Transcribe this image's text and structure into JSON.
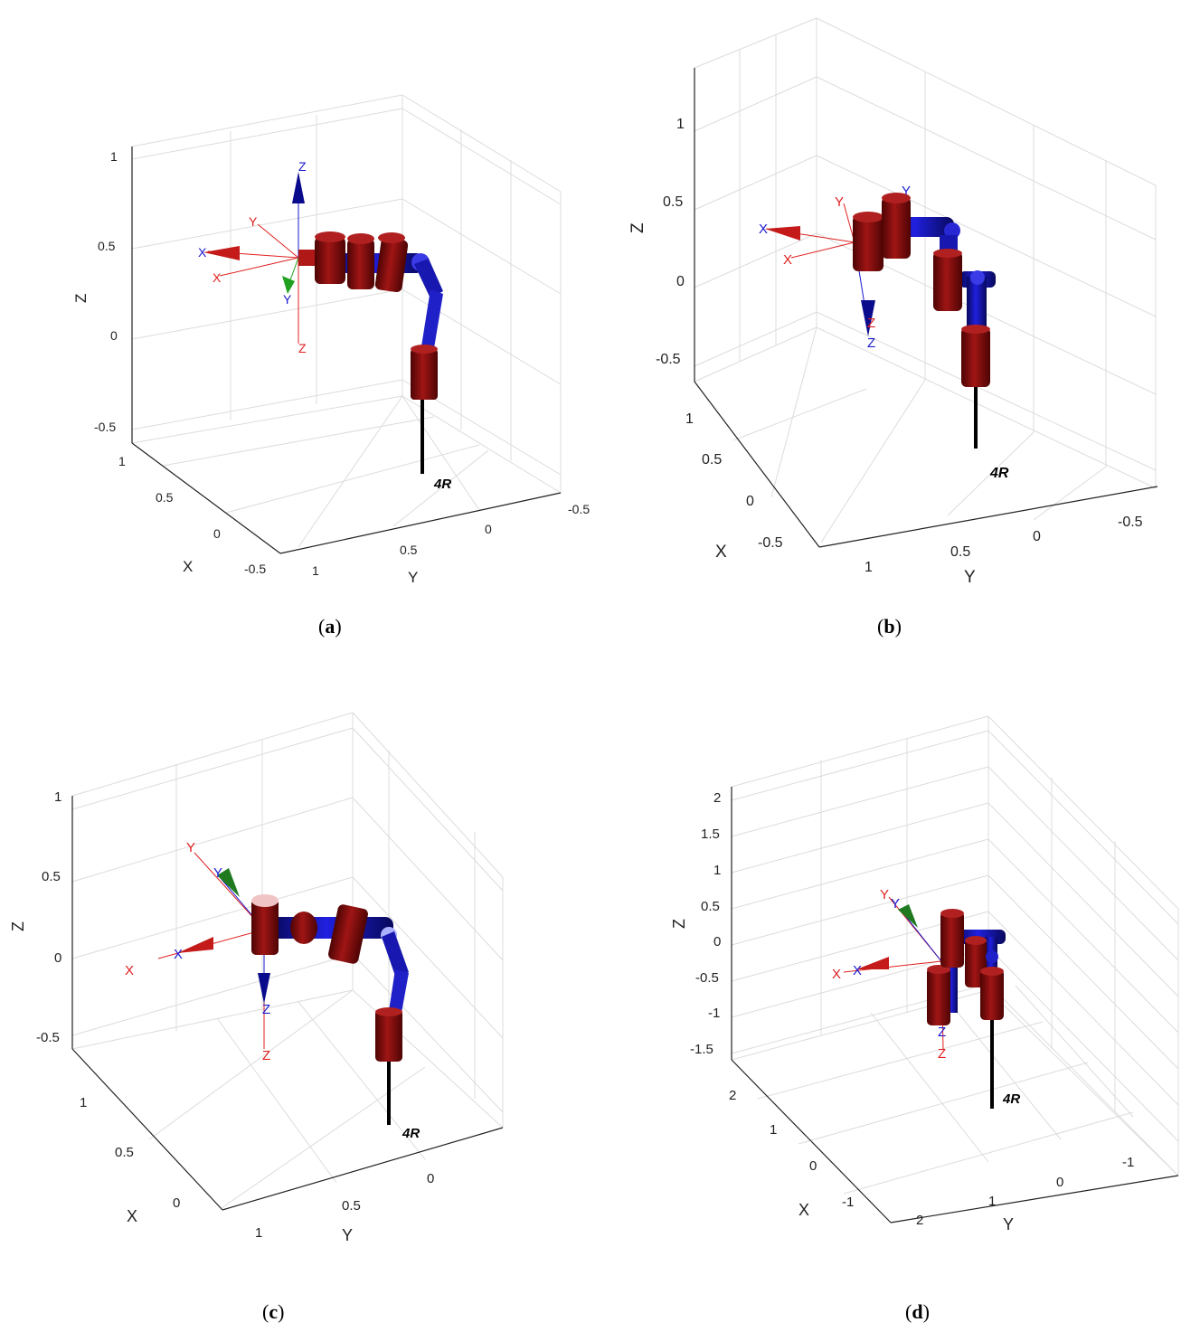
{
  "panels": [
    {
      "caption_open": "(",
      "caption_letter": "a",
      "caption_close": ")",
      "z_ticks": [
        "1",
        "0.5",
        "0",
        "-0.5"
      ],
      "x_ticks": [
        "1",
        "0.5",
        "0",
        "-0.5"
      ],
      "y_ticks": [
        "1",
        "0.5",
        "0",
        "-0.5"
      ],
      "axis_labels": {
        "x": "X",
        "y": "Y",
        "z": "Z"
      },
      "robot_label": "4R",
      "frame_labels": {
        "red_x": "X",
        "red_y": "Y",
        "red_z": "Z",
        "blue_x": "X",
        "blue_z": "Z",
        "green_y": "Y"
      }
    },
    {
      "caption_open": "(",
      "caption_letter": "b",
      "caption_close": ")",
      "z_ticks": [
        "1",
        "0.5",
        "0",
        "-0.5"
      ],
      "x_ticks": [
        "1",
        "0.5",
        "0",
        "-0.5"
      ],
      "y_ticks": [
        "1",
        "0.5",
        "0",
        "-0.5"
      ],
      "axis_labels": {
        "x": "X",
        "y": "Y",
        "z": "Z"
      },
      "robot_label": "4R",
      "frame_labels": {
        "red_x": "X",
        "red_y": "Y",
        "red_z": "Z",
        "blue_x": "X",
        "blue_y": "Y",
        "blue_z": "Z"
      }
    },
    {
      "caption_open": "(",
      "caption_letter": "c",
      "caption_close": ")",
      "z_ticks": [
        "1",
        "0.5",
        "0",
        "-0.5"
      ],
      "x_ticks": [
        "1",
        "0.5",
        "0"
      ],
      "y_ticks": [
        "1",
        "0.5",
        "0"
      ],
      "axis_labels": {
        "x": "X",
        "y": "Y",
        "z": "Z"
      },
      "robot_label": "4R",
      "frame_labels": {
        "red_x": "X",
        "red_y": "Y",
        "red_z": "Z",
        "blue_x": "X",
        "blue_y": "Y",
        "blue_z": "Z"
      }
    },
    {
      "caption_open": "(",
      "caption_letter": "d",
      "caption_close": ")",
      "z_ticks": [
        "2",
        "1.5",
        "1",
        "0.5",
        "0",
        "-0.5",
        "-1",
        "-1.5"
      ],
      "x_ticks": [
        "2",
        "1",
        "0",
        "-1"
      ],
      "y_ticks": [
        "2",
        "1",
        "0",
        "-1"
      ],
      "axis_labels": {
        "x": "X",
        "y": "Y",
        "z": "Z"
      },
      "robot_label": "4R",
      "frame_labels": {
        "red_x": "X",
        "red_y": "Y",
        "red_z": "Z",
        "blue_x": "X",
        "blue_y": "Y",
        "blue_z": "Z"
      }
    }
  ],
  "colors": {
    "grid": "#dcdcdc",
    "axis": "#222222",
    "link_red": "#8b0d0d",
    "link_red_dark": "#5a0606",
    "link_blue": "#1414c8",
    "link_blue_dark": "#0a0a78",
    "frame_red": "#e02020",
    "frame_blue": "#1a1ad0",
    "frame_green": "#1fa11f"
  }
}
